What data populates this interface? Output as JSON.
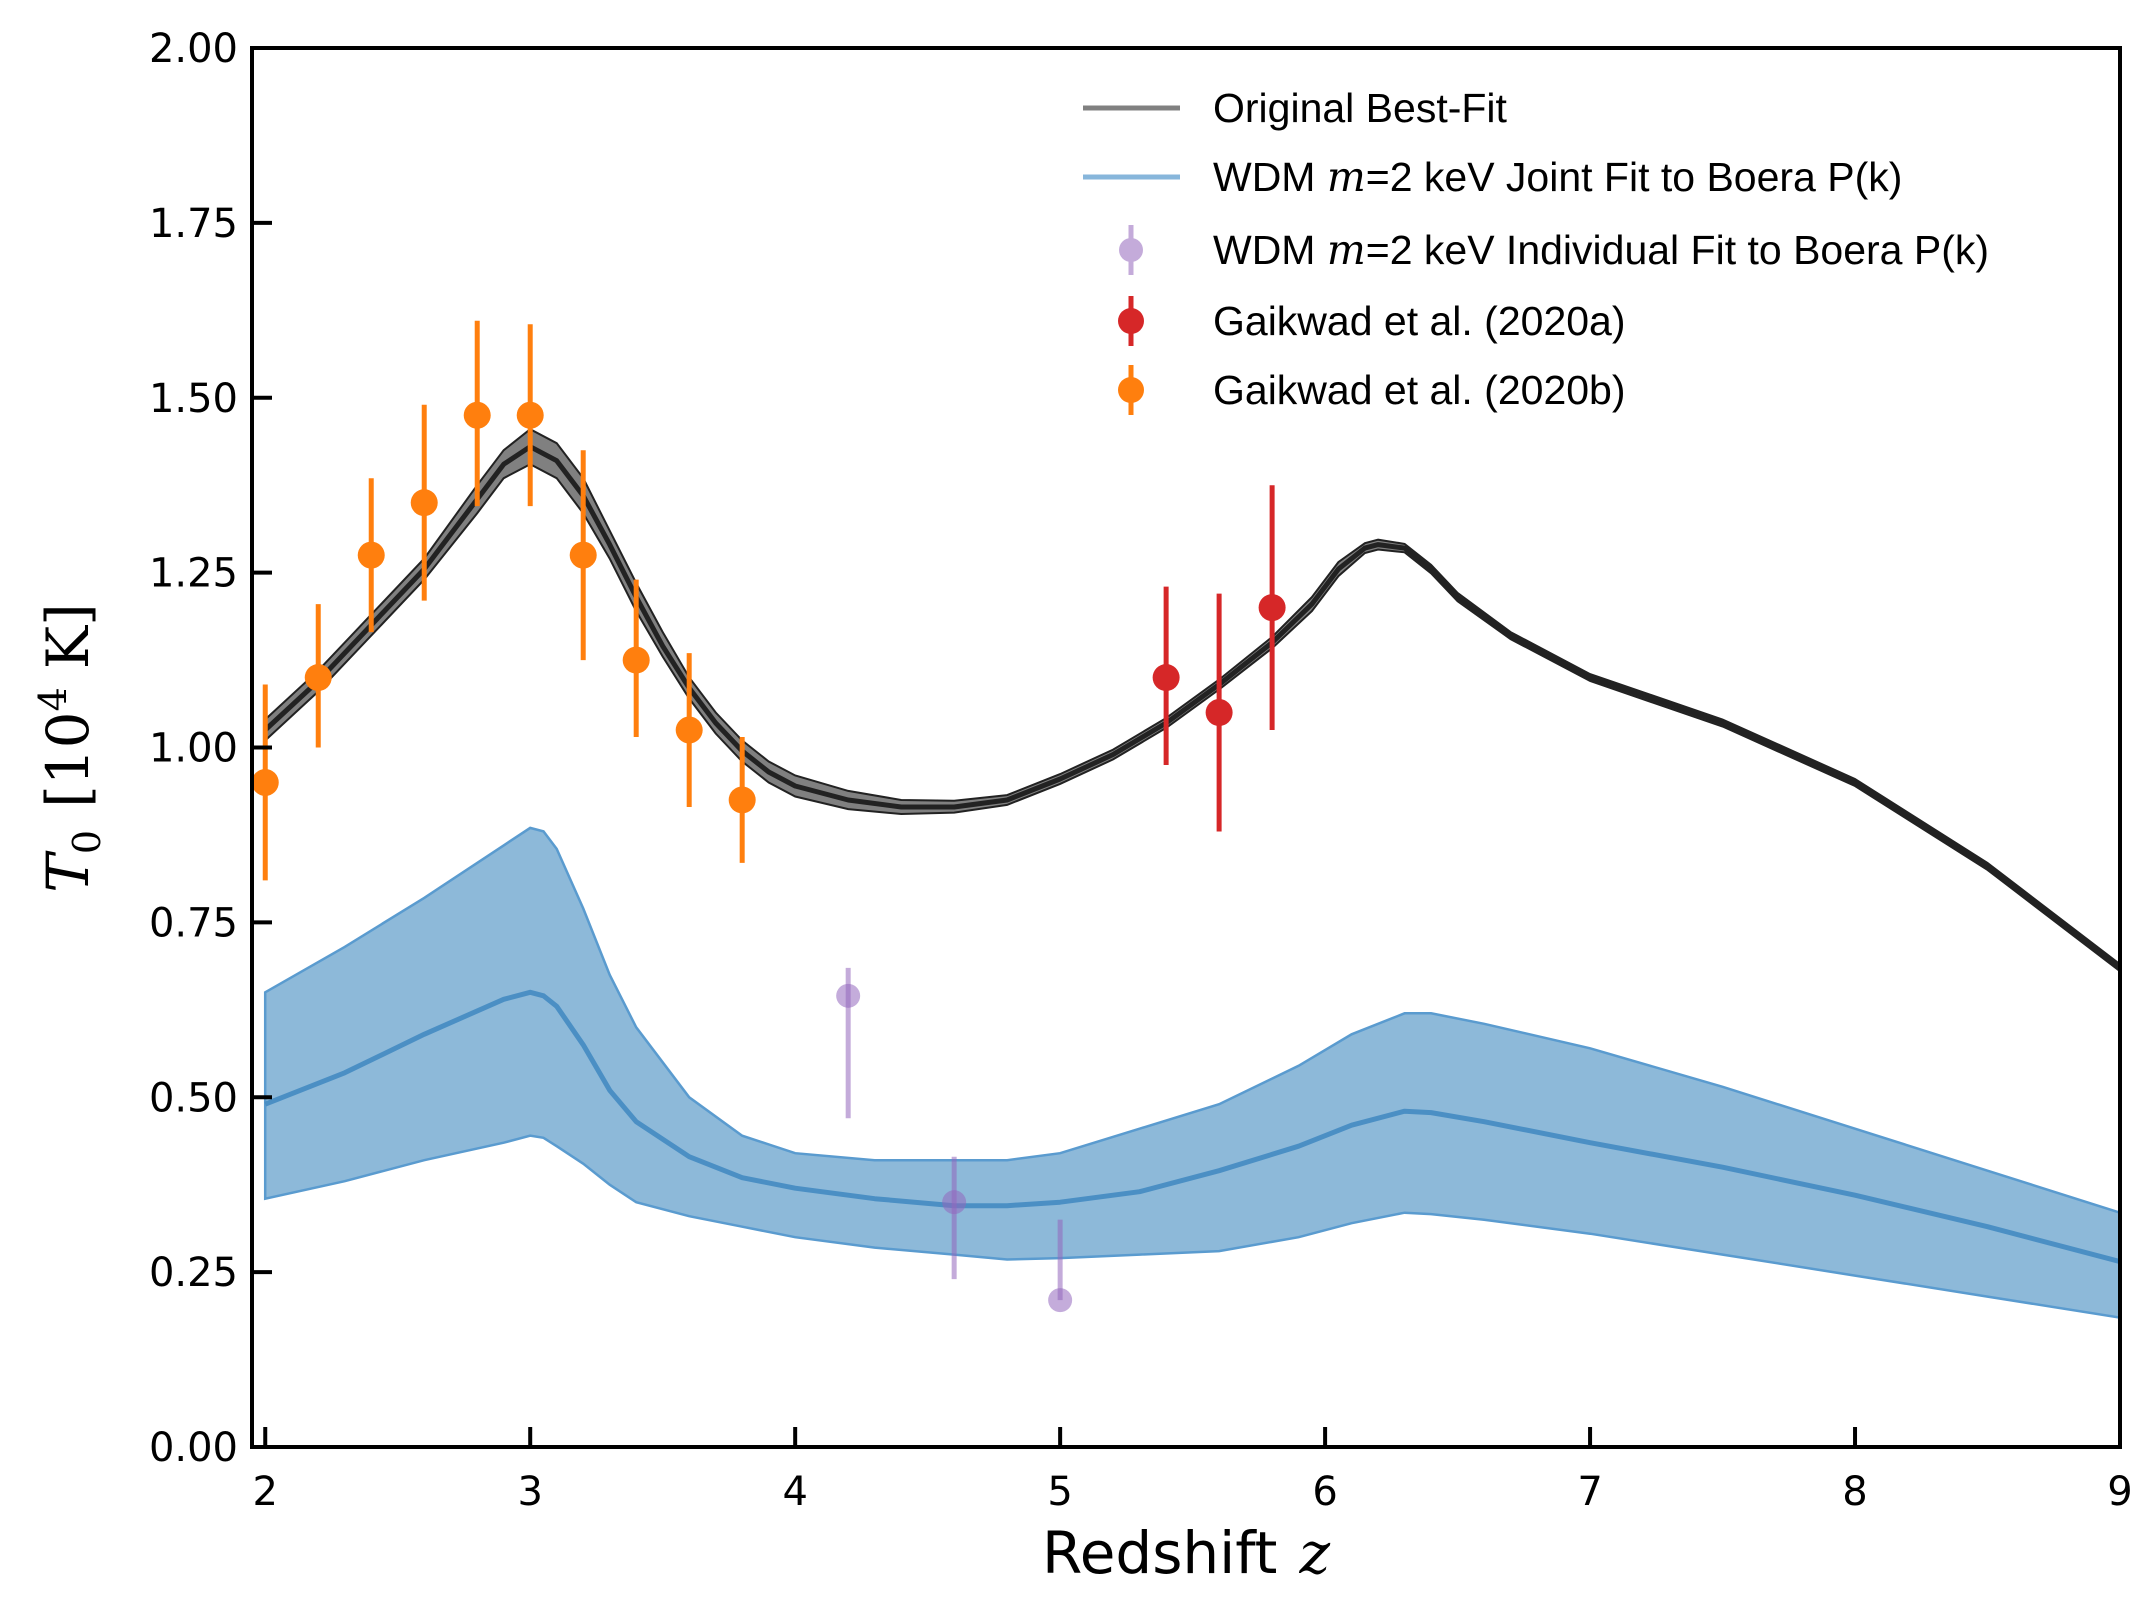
{
  "chart_data": {
    "type": "line",
    "xlabel": "Redshift",
    "xlabel_symbol": "z",
    "ylabel_symbol": "T",
    "ylabel_subscript": "0",
    "ylabel_units_open": "[",
    "ylabel_units_base": "10",
    "ylabel_units_exp": "4",
    "ylabel_units_unit": "K",
    "ylabel_units_close": "]",
    "xlim": [
      1.95,
      9.0
    ],
    "ylim": [
      0.0,
      2.0
    ],
    "x_ticks": [
      {
        "value": 2,
        "label": "2"
      },
      {
        "value": 3,
        "label": "3"
      },
      {
        "value": 4,
        "label": "4"
      },
      {
        "value": 5,
        "label": "5"
      },
      {
        "value": 6,
        "label": "6"
      },
      {
        "value": 7,
        "label": "7"
      },
      {
        "value": 8,
        "label": "8"
      },
      {
        "value": 9,
        "label": "9"
      }
    ],
    "y_ticks": [
      {
        "value": 0.0,
        "label": "0.00"
      },
      {
        "value": 0.25,
        "label": "0.25"
      },
      {
        "value": 0.5,
        "label": "0.50"
      },
      {
        "value": 0.75,
        "label": "0.75"
      },
      {
        "value": 1.0,
        "label": "1.00"
      },
      {
        "value": 1.25,
        "label": "1.25"
      },
      {
        "value": 1.5,
        "label": "1.50"
      },
      {
        "value": 1.75,
        "label": "1.75"
      },
      {
        "value": 2.0,
        "label": "2.00"
      }
    ],
    "grid": false,
    "legend_position": "top-right",
    "legend": [
      {
        "key": "original",
        "prefix": "Original Best-Fit",
        "math": "",
        "suffix": ""
      },
      {
        "key": "joint",
        "prefix": "WDM ",
        "math": "m",
        "suffix": "=2 keV Joint Fit to Boera P(k)"
      },
      {
        "key": "individual",
        "prefix": "WDM ",
        "math": "m",
        "suffix": "=2 keV Individual Fit to Boera P(k)"
      },
      {
        "key": "gaikwad_a",
        "prefix": "Gaikwad et al. (2020a)",
        "math": "",
        "suffix": ""
      },
      {
        "key": "gaikwad_b",
        "prefix": "Gaikwad et al. (2020b)",
        "math": "",
        "suffix": ""
      }
    ],
    "colors": {
      "original": "#222222",
      "original_band": "#555555",
      "joint_line": "#4b8fc4",
      "joint_band": "#8db9d9",
      "joint_edge": "#5a9bcf",
      "individual": "#9467bd",
      "gaikwad_a": "#d62728",
      "gaikwad_b": "#ff7f0e",
      "legend_original": "#808080",
      "legend_joint": "#87b6db"
    },
    "series": [
      {
        "key": "original",
        "kind": "line_band",
        "x": [
          2.0,
          2.2,
          2.4,
          2.6,
          2.8,
          2.9,
          3.0,
          3.1,
          3.2,
          3.3,
          3.4,
          3.5,
          3.6,
          3.7,
          3.8,
          3.9,
          4.0,
          4.2,
          4.4,
          4.6,
          4.8,
          5.0,
          5.2,
          5.4,
          5.6,
          5.8,
          5.95,
          6.05,
          6.15,
          6.2,
          6.3,
          6.4,
          6.5,
          6.7,
          7.0,
          7.5,
          8.0,
          8.5,
          9.0
        ],
        "y": [
          1.025,
          1.095,
          1.175,
          1.255,
          1.355,
          1.405,
          1.43,
          1.41,
          1.36,
          1.29,
          1.215,
          1.145,
          1.085,
          1.035,
          0.995,
          0.965,
          0.945,
          0.925,
          0.915,
          0.915,
          0.925,
          0.955,
          0.99,
          1.035,
          1.09,
          1.15,
          1.205,
          1.255,
          1.285,
          1.29,
          1.285,
          1.255,
          1.215,
          1.16,
          1.1,
          1.035,
          0.95,
          0.83,
          0.685
        ],
        "lower": [
          1.01,
          1.08,
          1.16,
          1.24,
          1.335,
          1.385,
          1.405,
          1.385,
          1.335,
          1.27,
          1.195,
          1.13,
          1.07,
          1.02,
          0.98,
          0.95,
          0.93,
          0.912,
          0.905,
          0.907,
          0.918,
          0.948,
          0.983,
          1.028,
          1.083,
          1.142,
          1.195,
          1.245,
          1.278,
          1.283,
          1.279,
          1.249,
          1.209,
          1.155,
          1.095,
          1.03,
          0.945,
          0.825,
          0.68
        ],
        "upper": [
          1.04,
          1.11,
          1.19,
          1.27,
          1.375,
          1.425,
          1.455,
          1.435,
          1.385,
          1.31,
          1.235,
          1.165,
          1.1,
          1.05,
          1.01,
          0.98,
          0.96,
          0.938,
          0.925,
          0.924,
          0.932,
          0.962,
          0.997,
          1.042,
          1.097,
          1.158,
          1.215,
          1.265,
          1.292,
          1.297,
          1.291,
          1.261,
          1.221,
          1.165,
          1.105,
          1.04,
          0.955,
          0.835,
          0.69
        ]
      },
      {
        "key": "joint",
        "kind": "line_band",
        "x": [
          2.0,
          2.3,
          2.6,
          2.9,
          3.0,
          3.05,
          3.1,
          3.2,
          3.3,
          3.4,
          3.6,
          3.8,
          4.0,
          4.3,
          4.6,
          4.8,
          5.0,
          5.3,
          5.6,
          5.9,
          6.1,
          6.3,
          6.4,
          6.6,
          7.0,
          7.5,
          8.0,
          8.5,
          9.0
        ],
        "y": [
          0.49,
          0.535,
          0.59,
          0.64,
          0.65,
          0.645,
          0.63,
          0.575,
          0.51,
          0.465,
          0.415,
          0.385,
          0.37,
          0.355,
          0.345,
          0.345,
          0.35,
          0.365,
          0.395,
          0.43,
          0.46,
          0.48,
          0.478,
          0.465,
          0.435,
          0.4,
          0.36,
          0.315,
          0.265
        ],
        "lower": [
          0.355,
          0.38,
          0.41,
          0.435,
          0.445,
          0.442,
          0.43,
          0.405,
          0.375,
          0.35,
          0.33,
          0.315,
          0.3,
          0.285,
          0.275,
          0.268,
          0.27,
          0.275,
          0.28,
          0.3,
          0.32,
          0.335,
          0.333,
          0.325,
          0.305,
          0.275,
          0.245,
          0.215,
          0.185
        ],
        "upper": [
          0.65,
          0.715,
          0.785,
          0.86,
          0.885,
          0.88,
          0.855,
          0.77,
          0.675,
          0.6,
          0.5,
          0.445,
          0.42,
          0.41,
          0.41,
          0.41,
          0.42,
          0.455,
          0.49,
          0.545,
          0.59,
          0.62,
          0.62,
          0.605,
          0.57,
          0.515,
          0.455,
          0.395,
          0.335
        ]
      },
      {
        "key": "individual",
        "kind": "errorbar",
        "points": [
          {
            "x": 4.2,
            "y": 0.645,
            "lo": 0.47,
            "hi": 0.685
          },
          {
            "x": 4.6,
            "y": 0.35,
            "lo": 0.24,
            "hi": 0.415
          },
          {
            "x": 5.0,
            "y": 0.21,
            "lo": 0.21,
            "hi": 0.325
          }
        ]
      },
      {
        "key": "gaikwad_a",
        "kind": "errorbar",
        "points": [
          {
            "x": 5.4,
            "y": 1.1,
            "lo": 0.975,
            "hi": 1.23
          },
          {
            "x": 5.6,
            "y": 1.05,
            "lo": 0.88,
            "hi": 1.22
          },
          {
            "x": 5.8,
            "y": 1.2,
            "lo": 1.025,
            "hi": 1.375
          }
        ]
      },
      {
        "key": "gaikwad_b",
        "kind": "errorbar",
        "points": [
          {
            "x": 2.0,
            "y": 0.95,
            "lo": 0.81,
            "hi": 1.09
          },
          {
            "x": 2.2,
            "y": 1.1,
            "lo": 1.0,
            "hi": 1.205
          },
          {
            "x": 2.4,
            "y": 1.275,
            "lo": 1.165,
            "hi": 1.385
          },
          {
            "x": 2.6,
            "y": 1.35,
            "lo": 1.21,
            "hi": 1.49
          },
          {
            "x": 2.8,
            "y": 1.475,
            "lo": 1.345,
            "hi": 1.61
          },
          {
            "x": 3.0,
            "y": 1.475,
            "lo": 1.345,
            "hi": 1.605
          },
          {
            "x": 3.2,
            "y": 1.275,
            "lo": 1.125,
            "hi": 1.425
          },
          {
            "x": 3.4,
            "y": 1.125,
            "lo": 1.015,
            "hi": 1.24
          },
          {
            "x": 3.6,
            "y": 1.025,
            "lo": 0.915,
            "hi": 1.135
          },
          {
            "x": 3.8,
            "y": 0.925,
            "lo": 0.835,
            "hi": 1.015
          }
        ]
      }
    ]
  }
}
